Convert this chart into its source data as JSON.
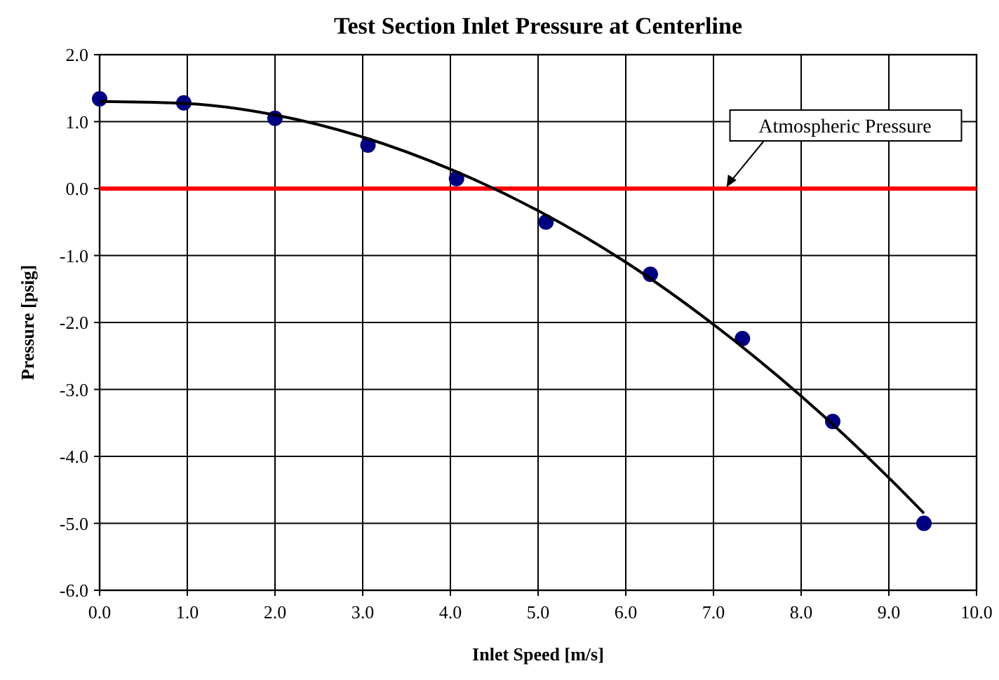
{
  "chart_data": {
    "type": "scatter",
    "title": "Test Section Inlet Pressure at Centerline",
    "xlabel": "Inlet Speed [m/s]",
    "ylabel": "Pressure [psig]",
    "xlim": [
      0,
      10
    ],
    "ylim": [
      -6,
      2
    ],
    "xticks": [
      {
        "value": 0,
        "label": "0.0"
      },
      {
        "value": 1,
        "label": "1.0"
      },
      {
        "value": 2,
        "label": "2.0"
      },
      {
        "value": 3,
        "label": "3.0"
      },
      {
        "value": 4,
        "label": "4.0"
      },
      {
        "value": 5,
        "label": "5.0"
      },
      {
        "value": 6,
        "label": "6.0"
      },
      {
        "value": 7,
        "label": "7.0"
      },
      {
        "value": 8,
        "label": "8.0"
      },
      {
        "value": 9,
        "label": "9.0"
      },
      {
        "value": 10,
        "label": "10.0"
      }
    ],
    "yticks": [
      {
        "value": 2,
        "label": "2.0"
      },
      {
        "value": 1,
        "label": "1.0"
      },
      {
        "value": 0,
        "label": "0.0"
      },
      {
        "value": -1,
        "label": "-1.0"
      },
      {
        "value": -2,
        "label": "-2.0"
      },
      {
        "value": -3,
        "label": "-3.0"
      },
      {
        "value": -4,
        "label": "-4.0"
      },
      {
        "value": -5,
        "label": "-5.0"
      },
      {
        "value": -6,
        "label": "-6.0"
      }
    ],
    "grid": true,
    "marker": "circle",
    "series": [
      {
        "color": "#000080",
        "x": [
          0.0,
          0.96,
          2.0,
          3.06,
          4.07,
          5.09,
          6.28,
          7.33,
          8.36,
          9.4
        ],
        "values": [
          1.34,
          1.28,
          1.05,
          0.65,
          0.15,
          -0.5,
          -1.28,
          -2.24,
          -3.48,
          -5.0
        ]
      },
      {
        "type": "line",
        "color": "#000000",
        "marker": "none",
        "x": [
          0,
          1,
          2,
          3,
          4,
          5,
          6,
          7,
          8,
          9,
          9.4
        ],
        "values": [
          1.3,
          1.27,
          1.1,
          0.77,
          0.29,
          -0.33,
          -1.1,
          -2.03,
          -3.1,
          -4.32,
          -4.85
        ]
      }
    ],
    "ref_lines": [
      {
        "axis": "y",
        "value": 0,
        "label": "Atmospheric Pressure",
        "color": "#ff0000"
      }
    ]
  }
}
